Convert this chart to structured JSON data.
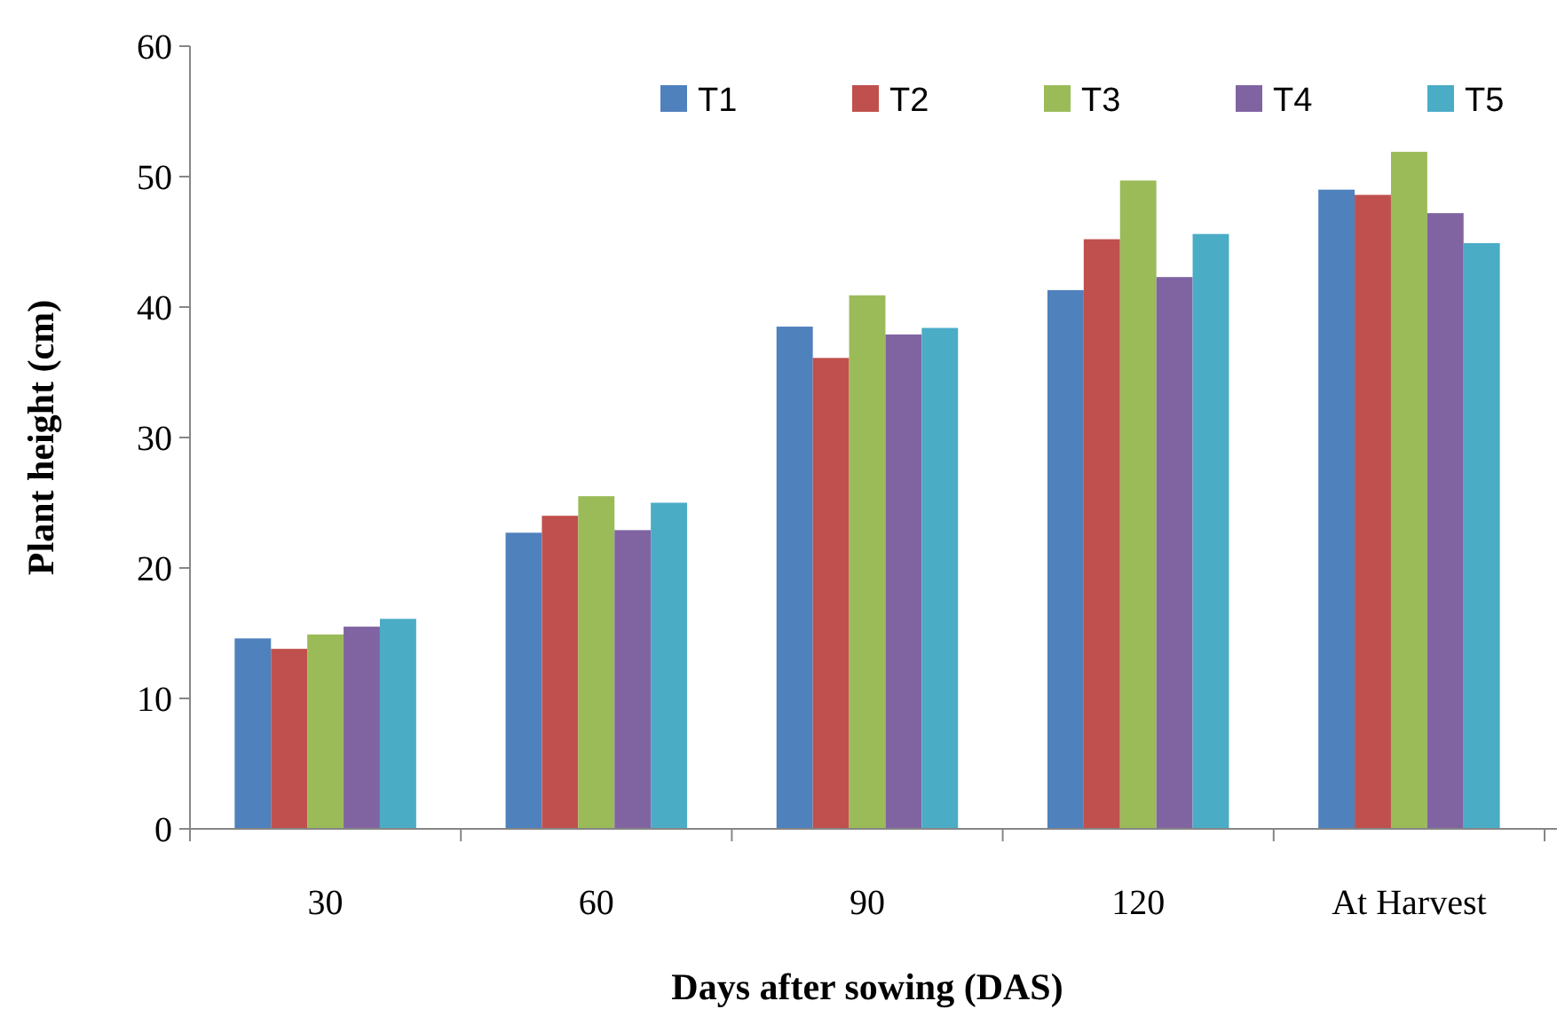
{
  "chart_data": {
    "type": "bar",
    "xlabel": "Days after sowing (DAS)",
    "ylabel": "Plant height (cm)",
    "categories": [
      "30",
      "60",
      "90",
      "120",
      "At Harvest"
    ],
    "series": [
      {
        "name": "T1",
        "color": "#4f81bd",
        "values": [
          14.6,
          22.7,
          38.5,
          41.3,
          49.0
        ]
      },
      {
        "name": "T2",
        "color": "#c0504d",
        "values": [
          13.8,
          24.0,
          36.1,
          45.2,
          48.6
        ]
      },
      {
        "name": "T3",
        "color": "#9bbb59",
        "values": [
          14.9,
          25.5,
          40.9,
          49.7,
          51.9
        ]
      },
      {
        "name": "T4",
        "color": "#8064a2",
        "values": [
          15.5,
          22.9,
          37.9,
          42.3,
          47.2
        ]
      },
      {
        "name": "T5",
        "color": "#4bacc6",
        "values": [
          16.1,
          25.0,
          38.4,
          45.6,
          44.9
        ]
      }
    ],
    "ylim": [
      0,
      60
    ],
    "yticks": [
      0,
      10,
      20,
      30,
      40,
      50,
      60
    ],
    "grid": false,
    "legend": "top right"
  }
}
